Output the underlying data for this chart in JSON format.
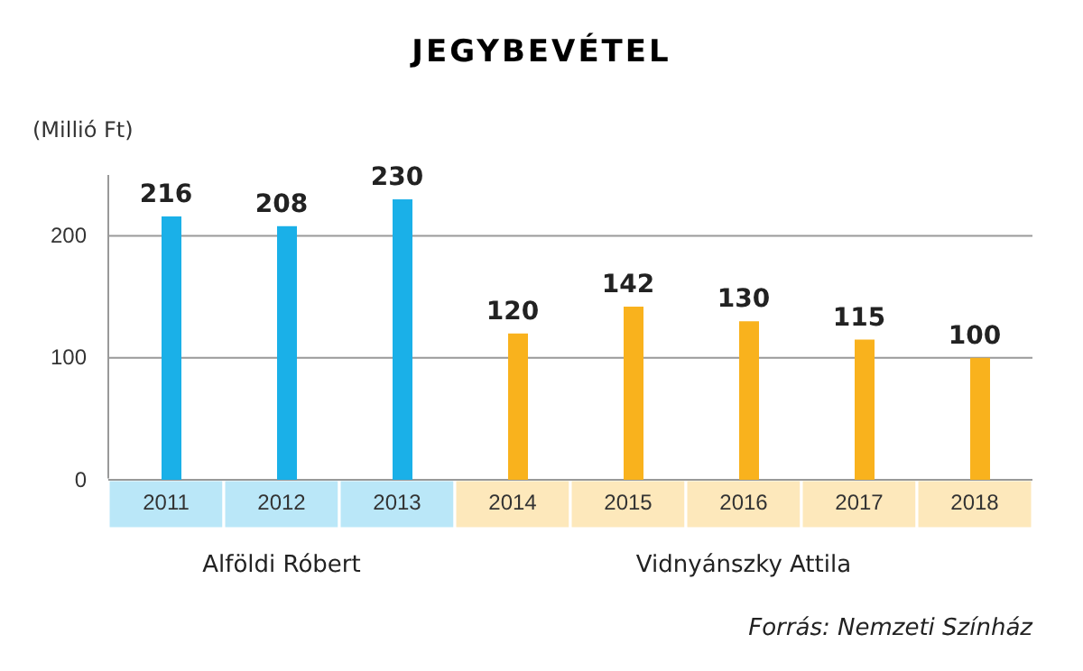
{
  "chart_data": {
    "type": "bar",
    "title": "JEGYBEVÉTEL",
    "ylabel": "(Millió Ft)",
    "categories": [
      "2011",
      "2012",
      "2013",
      "2014",
      "2015",
      "2016",
      "2017",
      "2018"
    ],
    "values": [
      216,
      208,
      230,
      120,
      142,
      130,
      115,
      100
    ],
    "colors": [
      "#1ab0e8",
      "#1ab0e8",
      "#1ab0e8",
      "#f9b21d",
      "#f9b21d",
      "#f9b21d",
      "#f9b21d",
      "#f9b21d"
    ],
    "ylim": [
      0,
      250
    ],
    "yticks": [
      0,
      100,
      200
    ],
    "grid": "y",
    "data_labels": true,
    "annotations": [
      "Alföldi Róbert",
      "Vidnyánszky Attila",
      "Forrás: Nemzeti Színház"
    ]
  }
}
